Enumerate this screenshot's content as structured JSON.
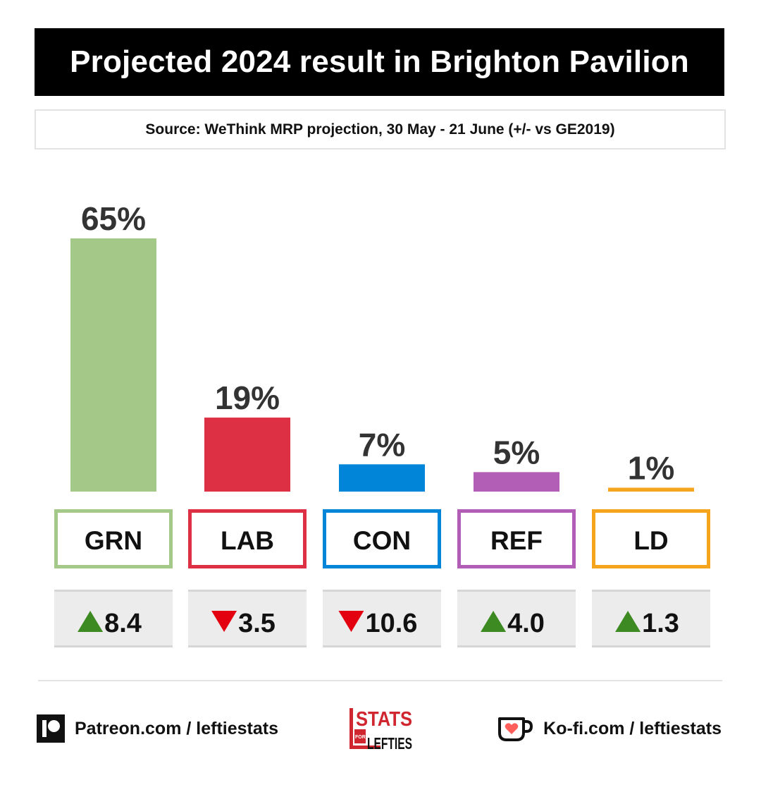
{
  "header": {
    "title": "Projected 2024 result in Brighton Pavilion",
    "source": "Source: WeThink MRP projection, 30 May - 21 June (+/- vs GE2019)"
  },
  "colors": {
    "GRN": "#a3c888",
    "LAB": "#dd3044",
    "CON": "#0085d9",
    "REF": "#b35eb6",
    "LD": "#f4a41d",
    "up": "#3e8a22",
    "down": "#e3000f",
    "change_bg": "#ececec"
  },
  "chart_data": {
    "type": "bar",
    "categories": [
      "GRN",
      "LAB",
      "CON",
      "REF",
      "LD"
    ],
    "values": [
      65,
      19,
      7,
      5,
      1
    ],
    "value_labels": [
      "65%",
      "19%",
      "7%",
      "5%",
      "1%"
    ],
    "changes": [
      {
        "direction": "up",
        "label": "8.4",
        "value": 8.4
      },
      {
        "direction": "down",
        "label": "3.5",
        "value": -3.5
      },
      {
        "direction": "down",
        "label": "10.6",
        "value": -10.6
      },
      {
        "direction": "up",
        "label": "4.0",
        "value": 4.0
      },
      {
        "direction": "up",
        "label": "1.3",
        "value": 1.3
      }
    ],
    "title": "Projected 2024 result in Brighton Pavilion",
    "ylim": [
      0,
      65
    ],
    "grid": false
  },
  "footer": {
    "patreon": "Patreon.com / leftiestats",
    "kofi": "Ko-fi.com / leftiestats",
    "patreon_icon": "patreon-icon",
    "kofi_icon": "kofi-cup-icon",
    "logo_lines": [
      "STATS",
      "FOR",
      "LEFTIES"
    ]
  }
}
